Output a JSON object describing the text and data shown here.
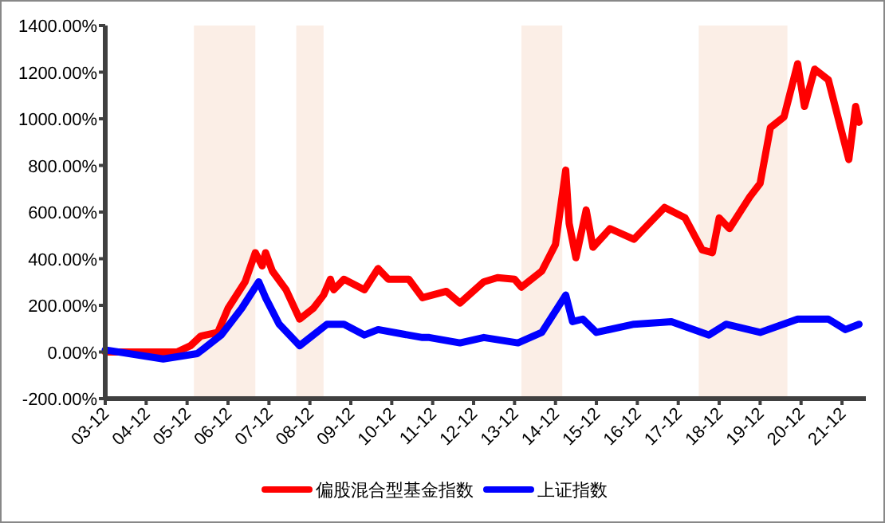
{
  "chart_data": {
    "type": "line",
    "legend": "bottom",
    "grid": false,
    "line_style": "solid",
    "ylim": [
      -200,
      1400
    ],
    "yticks": [
      {
        "value": -200,
        "label": "-200.00%"
      },
      {
        "value": 0,
        "label": "0.00%"
      },
      {
        "value": 200,
        "label": "200.00%"
      },
      {
        "value": 400,
        "label": "400.00%"
      },
      {
        "value": 600,
        "label": "600.00%"
      },
      {
        "value": 800,
        "label": "800.00%"
      },
      {
        "value": 1000,
        "label": "1000.00%"
      },
      {
        "value": 1200,
        "label": "1200.00%"
      },
      {
        "value": 1400,
        "label": "1400.00%"
      }
    ],
    "xlim": [
      "2003-12",
      "2022-07"
    ],
    "xticks": [
      {
        "value": "2003-12",
        "label": "03-12"
      },
      {
        "value": "2004-12",
        "label": "04-12"
      },
      {
        "value": "2005-12",
        "label": "05-12"
      },
      {
        "value": "2006-12",
        "label": "06-12"
      },
      {
        "value": "2007-12",
        "label": "07-12"
      },
      {
        "value": "2008-12",
        "label": "08-12"
      },
      {
        "value": "2009-12",
        "label": "09-12"
      },
      {
        "value": "2010-12",
        "label": "10-12"
      },
      {
        "value": "2011-12",
        "label": "11-12"
      },
      {
        "value": "2012-12",
        "label": "12-12"
      },
      {
        "value": "2013-12",
        "label": "13-12"
      },
      {
        "value": "2014-12",
        "label": "14-12"
      },
      {
        "value": "2015-12",
        "label": "15-12"
      },
      {
        "value": "2016-12",
        "label": "16-12"
      },
      {
        "value": "2017-12",
        "label": "17-12"
      },
      {
        "value": "2018-12",
        "label": "18-12"
      },
      {
        "value": "2019-12",
        "label": "19-12"
      },
      {
        "value": "2020-12",
        "label": "20-12"
      },
      {
        "value": "2021-12",
        "label": "21-12"
      }
    ],
    "bands": [
      {
        "axis": "x",
        "from": "2006-02",
        "to": "2007-08",
        "color": "#fbeee6"
      },
      {
        "axis": "x",
        "from": "2008-08",
        "to": "2009-04",
        "color": "#fbeee6"
      },
      {
        "axis": "x",
        "from": "2014-02",
        "to": "2015-02",
        "color": "#fbeee6"
      },
      {
        "axis": "x",
        "from": "2018-06",
        "to": "2020-08",
        "color": "#fbeee6"
      }
    ],
    "series": [
      {
        "name": "偏股混合型基金指数",
        "color": "#ff0000",
        "x": [
          "2003-12",
          "2004-12",
          "2005-09",
          "2006-01",
          "2006-04",
          "2006-09",
          "2006-12",
          "2007-05",
          "2007-08",
          "2007-10",
          "2007-11",
          "2008-01",
          "2008-05",
          "2008-09",
          "2009-01",
          "2009-04",
          "2009-06",
          "2009-07",
          "2009-10",
          "2010-04",
          "2010-08",
          "2010-11",
          "2011-05",
          "2011-09",
          "2012-04",
          "2012-08",
          "2013-03",
          "2013-07",
          "2013-12",
          "2014-02",
          "2014-08",
          "2014-12",
          "2015-03",
          "2015-04",
          "2015-06",
          "2015-09",
          "2015-11",
          "2016-04",
          "2016-11",
          "2017-02",
          "2017-08",
          "2018-02",
          "2018-07",
          "2018-10",
          "2018-12",
          "2019-03",
          "2019-09",
          "2019-12",
          "2020-03",
          "2020-07",
          "2020-11",
          "2021-01",
          "2021-04",
          "2021-08",
          "2022-02",
          "2022-04",
          "2022-05"
        ],
        "values": [
          0,
          0,
          0,
          27,
          68,
          84,
          187,
          301,
          426,
          369,
          426,
          347,
          267,
          141,
          187,
          244,
          312,
          267,
          312,
          267,
          358,
          312,
          312,
          233,
          260,
          210,
          301,
          319,
          312,
          278,
          347,
          461,
          780,
          552,
          404,
          609,
          449,
          529,
          483,
          529,
          620,
          575,
          438,
          426,
          575,
          529,
          666,
          723,
          962,
          1008,
          1236,
          1053,
          1213,
          1167,
          825,
          1053,
          985
        ]
      },
      {
        "name": "上证指数",
        "color": "#0000ff",
        "x": [
          "2003-12",
          "2005-05",
          "2006-03",
          "2006-10",
          "2007-04",
          "2007-09",
          "2007-11",
          "2008-03",
          "2008-09",
          "2009-05",
          "2009-10",
          "2010-04",
          "2010-08",
          "2011-09",
          "2011-11",
          "2012-08",
          "2013-03",
          "2014-01",
          "2014-08",
          "2015-03",
          "2015-05",
          "2015-08",
          "2015-12",
          "2016-11",
          "2017-10",
          "2018-09",
          "2019-02",
          "2019-12",
          "2020-11",
          "2021-08",
          "2022-01",
          "2022-05"
        ],
        "values": [
          9,
          -30,
          -7,
          73,
          187,
          301,
          233,
          119,
          27,
          119,
          119,
          73,
          96,
          62,
          62,
          39,
          62,
          39,
          84,
          244,
          130,
          141,
          84,
          119,
          130,
          73,
          119,
          84,
          141,
          141,
          96,
          119
        ]
      }
    ]
  }
}
